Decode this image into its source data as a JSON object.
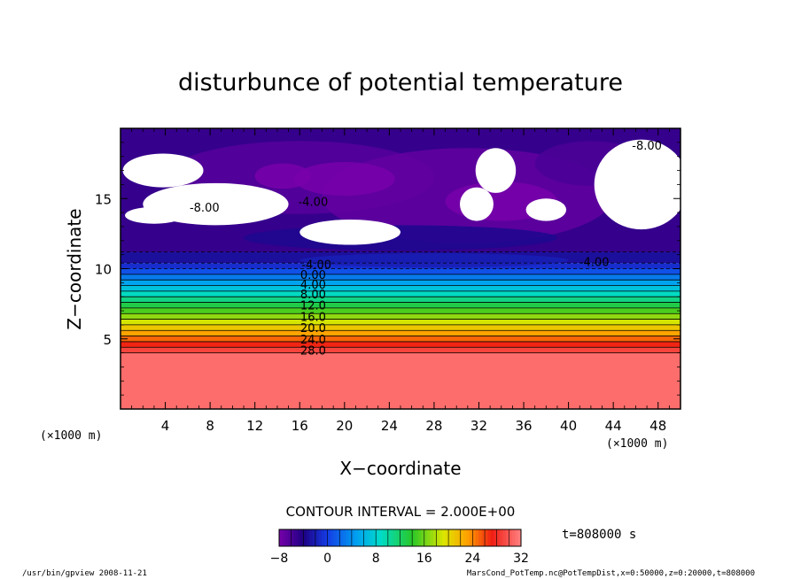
{
  "chart_data": {
    "type": "heatmap",
    "title": "disturbunce of potential temperature",
    "xlabel": "X−coordinate",
    "ylabel": "Z−coordinate",
    "x_unit_left": "(×1000 m)",
    "x_unit_right": "(×1000 m)",
    "xlim": [
      0,
      50
    ],
    "ylim": [
      0,
      20
    ],
    "x_ticks": [
      4,
      8,
      12,
      16,
      20,
      24,
      28,
      32,
      36,
      40,
      44,
      48
    ],
    "x_tick_labels": [
      "4",
      "8",
      "12",
      "16",
      "20",
      "24",
      "28",
      "32",
      "36",
      "40",
      "44",
      "48"
    ],
    "y_ticks": [
      5,
      10,
      15
    ],
    "y_tick_labels": [
      "5",
      "10",
      "15"
    ],
    "contour_interval_label": "CONTOUR INTERVAL = 2.000E+00",
    "time_label": "t=808000 s",
    "contour_labels": [
      {
        "text": "-8.00",
        "x": 47.0,
        "y": 18.8
      },
      {
        "text": "-8.00",
        "x": 7.5,
        "y": 14.4
      },
      {
        "text": "-4.00",
        "x": 17.2,
        "y": 14.8
      },
      {
        "text": "-4.00",
        "x": 42.3,
        "y": 10.5
      },
      {
        "text": "-4.00",
        "x": 17.5,
        "y": 10.3
      },
      {
        "text": "0.00",
        "x": 17.2,
        "y": 9.6
      },
      {
        "text": "4.00",
        "x": 17.2,
        "y": 8.9
      },
      {
        "text": "8.00",
        "x": 17.2,
        "y": 8.2
      },
      {
        "text": "12.0",
        "x": 17.2,
        "y": 7.4
      },
      {
        "text": "16.0",
        "x": 17.2,
        "y": 6.6
      },
      {
        "text": "20.0",
        "x": 17.2,
        "y": 5.8
      },
      {
        "text": "24.0",
        "x": 17.2,
        "y": 5.0
      },
      {
        "text": "28.0",
        "x": 17.2,
        "y": 4.2
      }
    ],
    "colorbar": {
      "min": -8,
      "max": 32,
      "tick_labels": [
        "−8",
        "0",
        "8",
        "16",
        "24",
        "32"
      ],
      "tick_values": [
        -8,
        0,
        8,
        16,
        24,
        32
      ],
      "levels": [
        -8,
        -6,
        -4,
        -2,
        0,
        2,
        4,
        6,
        8,
        10,
        12,
        14,
        16,
        18,
        20,
        22,
        24,
        26,
        28,
        30,
        32
      ]
    },
    "layers": [
      {
        "z0": 0,
        "z1": 4.0,
        "value": 31
      },
      {
        "z0": 4.0,
        "z1": 4.4,
        "value": 29
      },
      {
        "z0": 4.4,
        "z1": 4.8,
        "value": 27
      },
      {
        "z0": 4.8,
        "z1": 5.2,
        "value": 25
      },
      {
        "z0": 5.2,
        "z1": 5.6,
        "value": 23
      },
      {
        "z0": 5.6,
        "z1": 6.0,
        "value": 21
      },
      {
        "z0": 6.0,
        "z1": 6.4,
        "value": 19
      },
      {
        "z0": 6.4,
        "z1": 6.8,
        "value": 17
      },
      {
        "z0": 6.8,
        "z1": 7.2,
        "value": 15
      },
      {
        "z0": 7.2,
        "z1": 7.6,
        "value": 13
      },
      {
        "z0": 7.6,
        "z1": 8.0,
        "value": 11
      },
      {
        "z0": 8.0,
        "z1": 8.4,
        "value": 9
      },
      {
        "z0": 8.4,
        "z1": 8.8,
        "value": 7
      },
      {
        "z0": 8.8,
        "z1": 9.2,
        "value": 5
      },
      {
        "z0": 9.2,
        "z1": 9.6,
        "value": 3
      },
      {
        "z0": 9.6,
        "z1": 10.0,
        "value": 1
      },
      {
        "z0": 10.0,
        "z1": 10.4,
        "value": -1
      },
      {
        "z0": 10.4,
        "z1": 11.2,
        "value": -3
      },
      {
        "z0": 11.2,
        "z1": 20.0,
        "value": -5
      }
    ],
    "blobs": [
      {
        "cx": 16,
        "cy": 16.5,
        "rx": 12,
        "ry": 2.6,
        "value": -6.5
      },
      {
        "cx": 31,
        "cy": 15.2,
        "rx": 13,
        "ry": 3.4,
        "value": -7
      },
      {
        "cx": 20,
        "cy": 16.4,
        "rx": 4.5,
        "ry": 1.2,
        "value": -9
      },
      {
        "cx": 14.5,
        "cy": 16.6,
        "rx": 2.5,
        "ry": 0.9,
        "value": -10
      },
      {
        "cx": 34,
        "cy": 14.8,
        "rx": 5,
        "ry": 1.4,
        "value": -8.5
      },
      {
        "cx": 42,
        "cy": 17.5,
        "rx": 5,
        "ry": 1.6,
        "value": -6
      },
      {
        "cx": 25,
        "cy": 12.2,
        "rx": 14,
        "ry": 0.9,
        "value": -3.5
      },
      {
        "cx": 28,
        "cy": 10.6,
        "rx": 12,
        "ry": 0.5,
        "value": -2
      }
    ],
    "white_regions": [
      {
        "cx": 3.8,
        "cy": 17.0,
        "rx": 3.6,
        "ry": 1.2
      },
      {
        "cx": 8.5,
        "cy": 14.6,
        "rx": 6.5,
        "ry": 1.5
      },
      {
        "cx": 3.0,
        "cy": 13.8,
        "rx": 2.6,
        "ry": 0.6
      },
      {
        "cx": 20.5,
        "cy": 12.6,
        "rx": 4.5,
        "ry": 0.9
      },
      {
        "cx": 33.5,
        "cy": 17.0,
        "rx": 1.8,
        "ry": 1.6
      },
      {
        "cx": 31.8,
        "cy": 14.6,
        "rx": 1.5,
        "ry": 1.2
      },
      {
        "cx": 46.5,
        "cy": 16.0,
        "rx": 4.2,
        "ry": 3.2
      },
      {
        "cx": 38.0,
        "cy": 14.2,
        "rx": 1.8,
        "ry": 0.8
      }
    ],
    "grid": false,
    "legend": "bottom"
  },
  "footer": {
    "left": "/usr/bin/gpview   2008-11-21",
    "right": "MarsCond_PotTemp.nc@PotTempDist,x=0:50000,z=0:20000,t=808000"
  }
}
